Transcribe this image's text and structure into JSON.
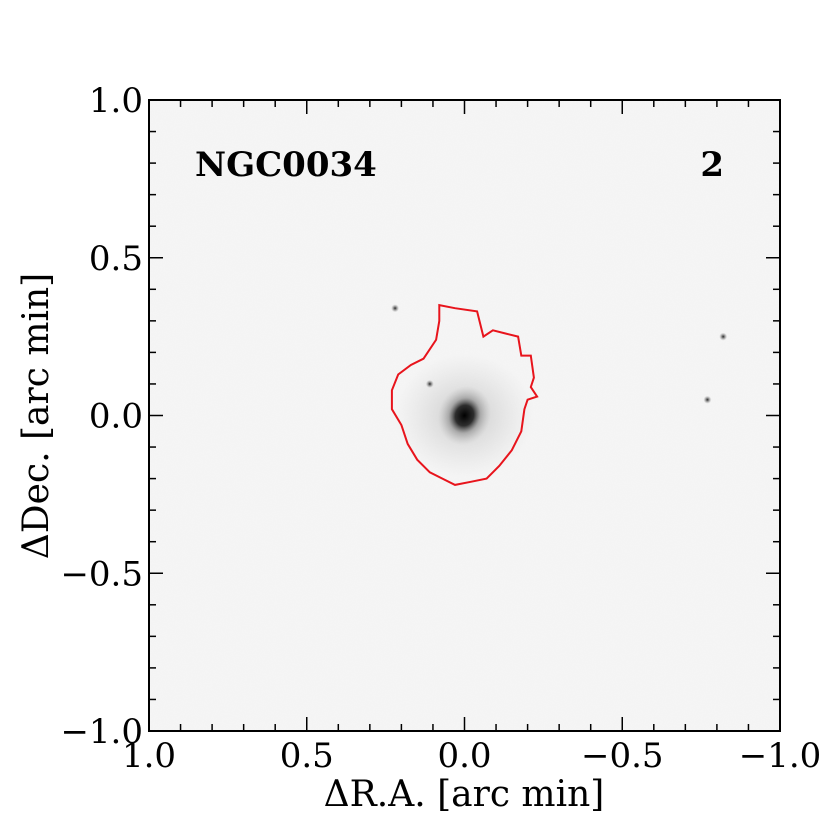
{
  "panel": {
    "galaxy_name": "NGC0034",
    "panel_number": "2"
  },
  "axes": {
    "xlabel": "ΔR.A. [arc min]",
    "ylabel": "ΔDec. [arc min]",
    "xlim": [
      1.0,
      -1.0
    ],
    "ylim": [
      -1.0,
      1.0
    ],
    "x_ticks": [
      1.0,
      0.5,
      0.0,
      -0.5,
      -1.0
    ],
    "x_tick_labels": [
      "1.0",
      "0.5",
      "0.0",
      "−0.5",
      "−1.0"
    ],
    "y_ticks": [
      1.0,
      0.5,
      0.0,
      -0.5,
      -1.0
    ],
    "y_tick_labels": [
      "1.0",
      "0.5",
      "0.0",
      "−0.5",
      "−1.0"
    ]
  },
  "image": {
    "colormap": "inverted grayscale",
    "galaxy_center": [
      0.0,
      0.0
    ],
    "point_sources": [
      [
        -0.82,
        0.25
      ],
      [
        -0.77,
        0.05
      ],
      [
        0.11,
        0.1
      ],
      [
        0.22,
        0.34
      ]
    ]
  },
  "contour": {
    "color": "#e8141c",
    "points": [
      [
        0.08,
        0.35
      ],
      [
        0.03,
        0.34
      ],
      [
        -0.04,
        0.33
      ],
      [
        -0.06,
        0.25
      ],
      [
        -0.09,
        0.27
      ],
      [
        -0.13,
        0.26
      ],
      [
        -0.17,
        0.25
      ],
      [
        -0.18,
        0.19
      ],
      [
        -0.21,
        0.19
      ],
      [
        -0.22,
        0.12
      ],
      [
        -0.21,
        0.09
      ],
      [
        -0.23,
        0.06
      ],
      [
        -0.2,
        0.05
      ],
      [
        -0.19,
        0.02
      ],
      [
        -0.18,
        -0.05
      ],
      [
        -0.15,
        -0.11
      ],
      [
        -0.11,
        -0.16
      ],
      [
        -0.07,
        -0.2
      ],
      [
        -0.02,
        -0.21
      ],
      [
        0.03,
        -0.22
      ],
      [
        0.07,
        -0.2
      ],
      [
        0.11,
        -0.18
      ],
      [
        0.15,
        -0.14
      ],
      [
        0.18,
        -0.09
      ],
      [
        0.2,
        -0.03
      ],
      [
        0.23,
        0.02
      ],
      [
        0.23,
        0.08
      ],
      [
        0.21,
        0.13
      ],
      [
        0.17,
        0.16
      ],
      [
        0.13,
        0.18
      ],
      [
        0.09,
        0.24
      ],
      [
        0.08,
        0.3
      ]
    ]
  }
}
